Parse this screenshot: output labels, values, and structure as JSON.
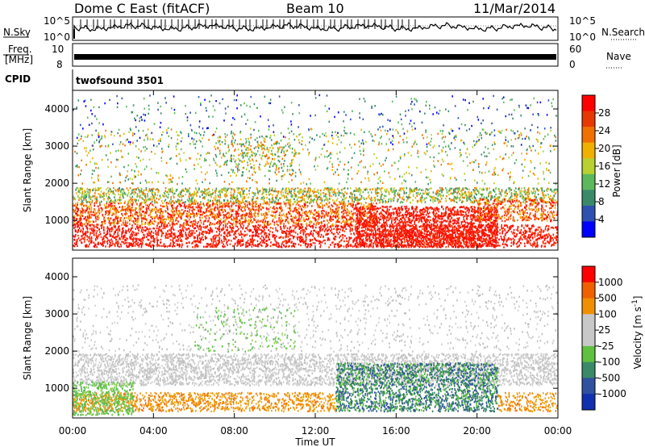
{
  "header": {
    "title": "Dome C East (fitACF)",
    "beam": "Beam 10",
    "date": "11/Mar/2014"
  },
  "panels": {
    "nsky_label": "N.Sky",
    "nsky_ticks": [
      "10^5",
      "10^0"
    ],
    "nsearch_label": "N.Search",
    "freq_label_1": "Freq.",
    "freq_label_2": "[MHz]",
    "freq_ticks": [
      "10",
      "8"
    ],
    "nave_label": "Nave",
    "nave_ticks": [
      "60",
      "0"
    ],
    "cpid_label": "CPID",
    "cpid_value": "twofsound 3501"
  },
  "chart_data": [
    {
      "type": "heatmap",
      "title": "",
      "xlabel": "",
      "ylabel": "Slant Range [km]",
      "x_ticks": [
        "00:00",
        "04:00",
        "08:00",
        "12:00",
        "16:00",
        "20:00",
        "00:00"
      ],
      "y_ticks": [
        1000,
        2000,
        3000,
        4000
      ],
      "xlim_hours": [
        0,
        24
      ],
      "ylim_km": [
        200,
        4500
      ],
      "colorbar": {
        "label": "Power [dB]",
        "ticks": [
          4,
          8,
          12,
          16,
          20,
          24,
          28
        ],
        "colors": [
          "#0000ff",
          "#3050b0",
          "#3a8a6a",
          "#5cb85c",
          "#b8d030",
          "#f0b000",
          "#f07000",
          "#e83800",
          "#ff0000"
        ]
      }
    },
    {
      "type": "heatmap",
      "title": "",
      "xlabel": "Time UT",
      "ylabel": "Slant Range [km]",
      "x_ticks": [
        "00:00",
        "04:00",
        "08:00",
        "12:00",
        "16:00",
        "20:00",
        "00:00"
      ],
      "y_ticks": [
        1000,
        2000,
        3000,
        4000
      ],
      "xlim_hours": [
        0,
        24
      ],
      "ylim_km": [
        200,
        4500
      ],
      "colorbar": {
        "label": "Velocity [m s^-1]",
        "ticks": [
          "1000",
          "500",
          "100",
          "25",
          "-25",
          "-100",
          "-500",
          "-1000"
        ],
        "colors": [
          "#1030b0",
          "#3050a0",
          "#3a8a6a",
          "#60c040",
          "#c8c8c8",
          "#c8c8c8",
          "#f09000",
          "#f06000",
          "#ff0000"
        ]
      }
    }
  ],
  "colors": {
    "red": "#ff0000",
    "orange": "#f07000",
    "green": "#3a8a6a",
    "grey": "#c8c8c8"
  }
}
